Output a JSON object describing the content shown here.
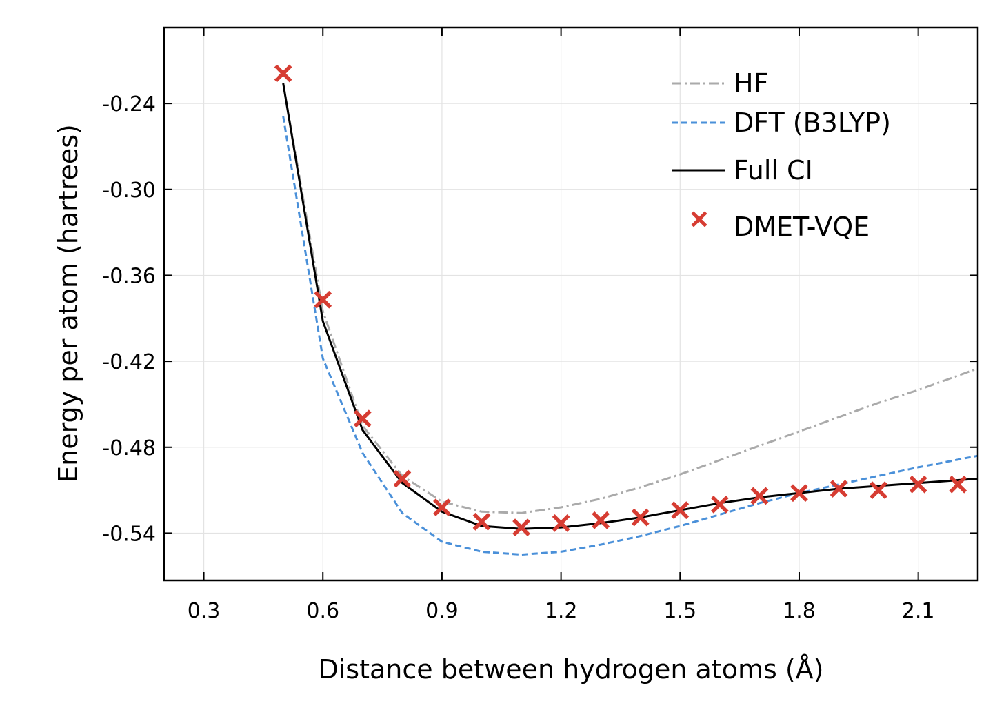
{
  "chart_data": {
    "type": "line",
    "xlabel": "Distance between hydrogen atoms (Å)",
    "ylabel": "Energy per atom (hartrees)",
    "xlim": [
      0.2,
      2.25
    ],
    "ylim": [
      -0.573,
      -0.187
    ],
    "xticks": [
      0.3,
      0.6,
      0.9,
      1.2,
      1.5,
      1.8,
      2.1
    ],
    "xtick_labels": [
      "0.3",
      "0.6",
      "0.9",
      "1.2",
      "1.5",
      "1.8",
      "2.1"
    ],
    "yticks": [
      -0.24,
      -0.3,
      -0.36,
      -0.42,
      -0.48,
      -0.54
    ],
    "ytick_labels": [
      "-0.24",
      "-0.30",
      "-0.36",
      "-0.42",
      "-0.48",
      "-0.54"
    ],
    "grid": true,
    "legend_position": "top-right",
    "series": [
      {
        "name": "HF",
        "style": "dashdot",
        "color": "#aaaaaa",
        "x": [
          0.5,
          0.6,
          0.7,
          0.8,
          0.9,
          1.0,
          1.1,
          1.2,
          1.3,
          1.4,
          1.5,
          1.6,
          1.7,
          1.8,
          1.9,
          2.0,
          2.1,
          2.25
        ],
        "y": [
          -0.226,
          -0.385,
          -0.465,
          -0.5,
          -0.518,
          -0.525,
          -0.526,
          -0.522,
          -0.516,
          -0.508,
          -0.499,
          -0.489,
          -0.479,
          -0.469,
          -0.459,
          -0.449,
          -0.44,
          -0.425
        ]
      },
      {
        "name": "DFT (B3LYP)",
        "style": "dashed",
        "color": "#4a90d9",
        "x": [
          0.5,
          0.6,
          0.7,
          0.8,
          0.9,
          1.0,
          1.1,
          1.2,
          1.3,
          1.4,
          1.5,
          1.6,
          1.7,
          1.8,
          1.9,
          2.0,
          2.1,
          2.25
        ],
        "y": [
          -0.249,
          -0.418,
          -0.484,
          -0.526,
          -0.546,
          -0.553,
          -0.555,
          -0.553,
          -0.548,
          -0.542,
          -0.535,
          -0.527,
          -0.519,
          -0.512,
          -0.506,
          -0.5,
          -0.494,
          -0.486
        ]
      },
      {
        "name": "Full CI",
        "style": "solid",
        "color": "#000000",
        "x": [
          0.5,
          0.6,
          0.7,
          0.8,
          0.9,
          1.0,
          1.1,
          1.2,
          1.3,
          1.4,
          1.5,
          1.6,
          1.7,
          1.8,
          1.9,
          2.0,
          2.1,
          2.25
        ],
        "y": [
          -0.226,
          -0.392,
          -0.468,
          -0.505,
          -0.525,
          -0.535,
          -0.537,
          -0.536,
          -0.533,
          -0.529,
          -0.524,
          -0.519,
          -0.515,
          -0.512,
          -0.509,
          -0.507,
          -0.505,
          -0.502
        ]
      },
      {
        "name": "DMET-VQE",
        "style": "markers",
        "marker": "x",
        "color": "#d63c32",
        "x": [
          0.5,
          0.6,
          0.7,
          0.8,
          0.9,
          1.0,
          1.1,
          1.2,
          1.3,
          1.4,
          1.5,
          1.6,
          1.7,
          1.8,
          1.9,
          2.0,
          2.1,
          2.2
        ],
        "y": [
          -0.219,
          -0.377,
          -0.46,
          -0.502,
          -0.522,
          -0.532,
          -0.536,
          -0.533,
          -0.531,
          -0.529,
          -0.524,
          -0.52,
          -0.514,
          -0.512,
          -0.509,
          -0.51,
          -0.506,
          -0.506
        ]
      }
    ]
  }
}
